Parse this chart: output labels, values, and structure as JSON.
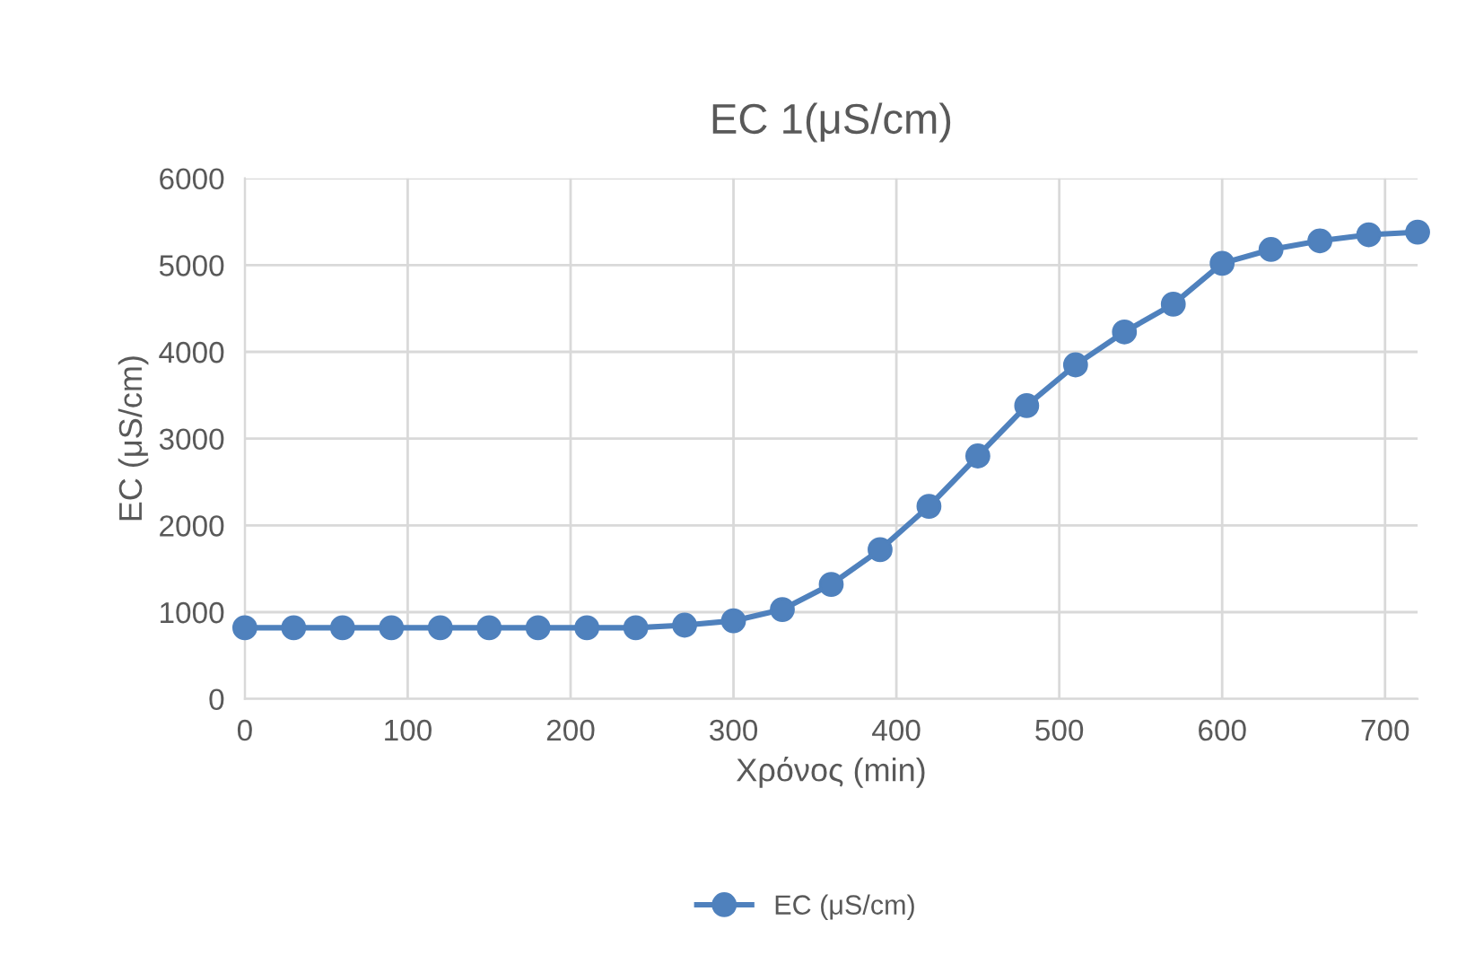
{
  "chart_data": {
    "type": "line",
    "title": "EC 1(μS/cm)",
    "xlabel": "Χρόνος (min)",
    "ylabel": "EC (μS/cm)",
    "x": [
      0,
      30,
      60,
      90,
      120,
      150,
      180,
      210,
      240,
      270,
      300,
      330,
      360,
      390,
      420,
      450,
      480,
      510,
      540,
      570,
      600,
      630,
      660,
      690,
      720
    ],
    "series": [
      {
        "name": "EC (μS/cm)",
        "color": "#4f81bd",
        "values": [
          820,
          820,
          820,
          820,
          820,
          820,
          820,
          820,
          820,
          850,
          900,
          1030,
          1320,
          1720,
          2220,
          2800,
          3380,
          3850,
          4230,
          4550,
          5020,
          5180,
          5280,
          5350,
          5380
        ]
      }
    ],
    "xlim": [
      0,
      720
    ],
    "xticks": [
      0,
      100,
      200,
      300,
      400,
      500,
      600,
      700
    ],
    "ylim": [
      0,
      6000
    ],
    "yticks": [
      0,
      1000,
      2000,
      3000,
      4000,
      5000,
      6000
    ],
    "grid": true,
    "legend": "bottom",
    "marker": "circle",
    "line_style": "solid"
  }
}
